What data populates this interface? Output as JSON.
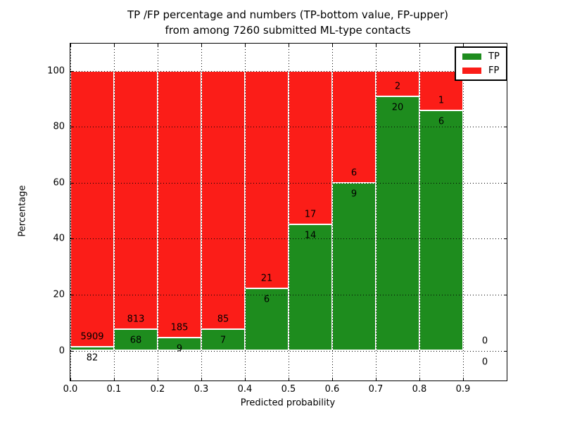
{
  "figure": {
    "title_line1": "TP /FP percentage and numbers (TP-bottom value, FP-upper)",
    "title_line2": "from among 7260 submitted ML-type contacts",
    "background_color": "#ffffff",
    "text_color": "#000000"
  },
  "chart_data": {
    "type": "bar",
    "stacked": true,
    "title": "TP /FP percentage and numbers (TP-bottom value, FP-upper) from among 7260 submitted ML-type contacts",
    "total_contacts": 7260,
    "xlabel": "Predicted probability",
    "ylabel": "Percentage",
    "xlim": [
      0.0,
      1.0
    ],
    "ylim": [
      -10.7,
      109.7
    ],
    "x_tick_labels": [
      "0.0",
      "0.1",
      "0.2",
      "0.3",
      "0.4",
      "0.5",
      "0.6",
      "0.7",
      "0.8",
      "0.9"
    ],
    "y_tick_values": [
      0,
      20,
      40,
      60,
      80,
      100
    ],
    "grid": "dotted-black-both-axes",
    "bar_edge_color": "#ffffff",
    "tp_color": "#1e8c1e",
    "fp_color": "#fb1d18",
    "legend": {
      "position": "upper-right",
      "entries": [
        {
          "label": "TP",
          "color": "#1e8c1e"
        },
        {
          "label": "FP",
          "color": "#fb1d18"
        }
      ]
    },
    "bins": [
      {
        "range": [
          0.0,
          0.1
        ],
        "tp": 82,
        "fp": 5909,
        "tp_pct": 1.37,
        "has_bar": true
      },
      {
        "range": [
          0.1,
          0.2
        ],
        "tp": 68,
        "fp": 813,
        "tp_pct": 7.72,
        "has_bar": true
      },
      {
        "range": [
          0.2,
          0.3
        ],
        "tp": 9,
        "fp": 185,
        "tp_pct": 4.64,
        "has_bar": true
      },
      {
        "range": [
          0.3,
          0.4
        ],
        "tp": 7,
        "fp": 85,
        "tp_pct": 7.61,
        "has_bar": true
      },
      {
        "range": [
          0.4,
          0.5
        ],
        "tp": 6,
        "fp": 21,
        "tp_pct": 22.22,
        "has_bar": true
      },
      {
        "range": [
          0.5,
          0.6
        ],
        "tp": 14,
        "fp": 17,
        "tp_pct": 45.16,
        "has_bar": true
      },
      {
        "range": [
          0.6,
          0.7
        ],
        "tp": 9,
        "fp": 6,
        "tp_pct": 60.0,
        "has_bar": true
      },
      {
        "range": [
          0.7,
          0.8
        ],
        "tp": 20,
        "fp": 2,
        "tp_pct": 90.91,
        "has_bar": true
      },
      {
        "range": [
          0.8,
          0.9
        ],
        "tp": 6,
        "fp": 1,
        "tp_pct": 85.71,
        "has_bar": true
      },
      {
        "range": [
          0.9,
          1.0
        ],
        "tp": 0,
        "fp": 0,
        "tp_pct": 0.0,
        "has_bar": false
      }
    ]
  }
}
